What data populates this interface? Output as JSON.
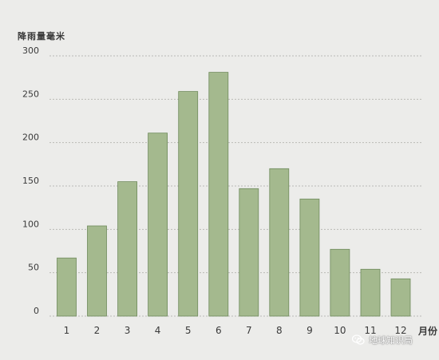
{
  "chart_data": {
    "type": "bar",
    "ylabel": "降雨量毫米",
    "xlabel": "月份",
    "categories": [
      "1",
      "2",
      "3",
      "4",
      "5",
      "6",
      "7",
      "8",
      "9",
      "10",
      "11",
      "12"
    ],
    "values": [
      67,
      104,
      155,
      211,
      259,
      281,
      147,
      170,
      135,
      77,
      54,
      43
    ],
    "ylim": [
      0,
      300
    ],
    "yticks": [
      0,
      50,
      100,
      150,
      200,
      250,
      300
    ],
    "grid": true,
    "bar_color": "#a4b98e",
    "bar_edge_color": "#6f8a5c",
    "grid_color": "#b9b9b5"
  },
  "watermark": {
    "text": "地球知识局",
    "icon": "wechat-icon"
  }
}
